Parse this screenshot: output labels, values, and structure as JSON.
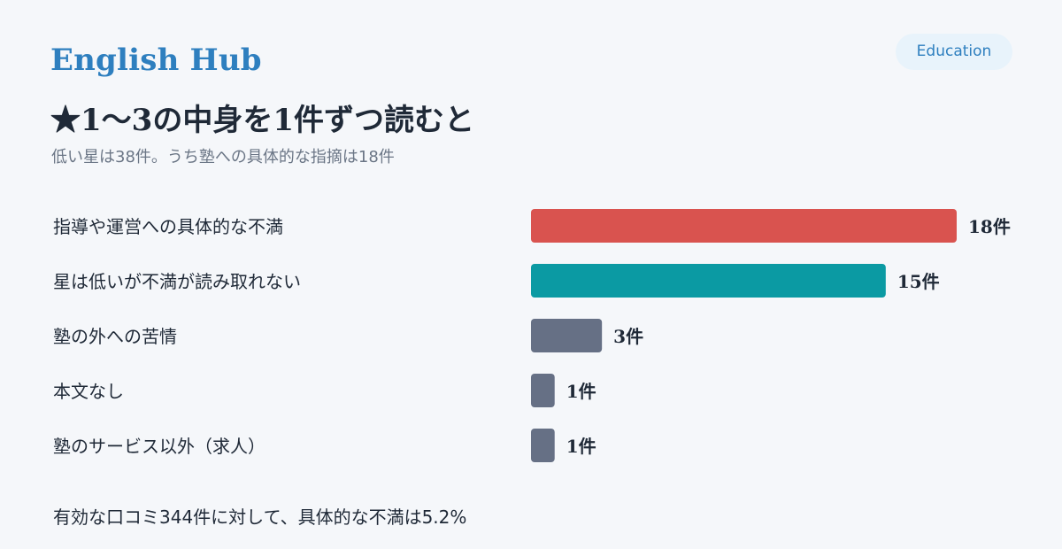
{
  "header": {
    "brand": "English Hub",
    "tag": "Education"
  },
  "chart_data": {
    "type": "bar",
    "orientation": "horizontal",
    "title": "★1〜3の中身を1件ずつ読むと",
    "subtitle": "低い星は38件。うち塾への具体的な指摘は18件",
    "categories": [
      "指導や運営への具体的な不満",
      "星は低いが不満が読み取れない",
      "塾の外への苦情",
      "本文なし",
      "塾のサービス以外（求人）"
    ],
    "values": [
      18,
      15,
      3,
      1,
      1
    ],
    "value_labels": [
      "18件",
      "15件",
      "3件",
      "1件",
      "1件"
    ],
    "colors": [
      "#d9534f",
      "#0b9aa3",
      "#667085",
      "#667085",
      "#667085"
    ],
    "xlim": [
      0,
      18
    ],
    "grid": false,
    "legend": "none"
  },
  "footnote": "有効な口コミ344件に対して、具体的な不満は5.2%"
}
